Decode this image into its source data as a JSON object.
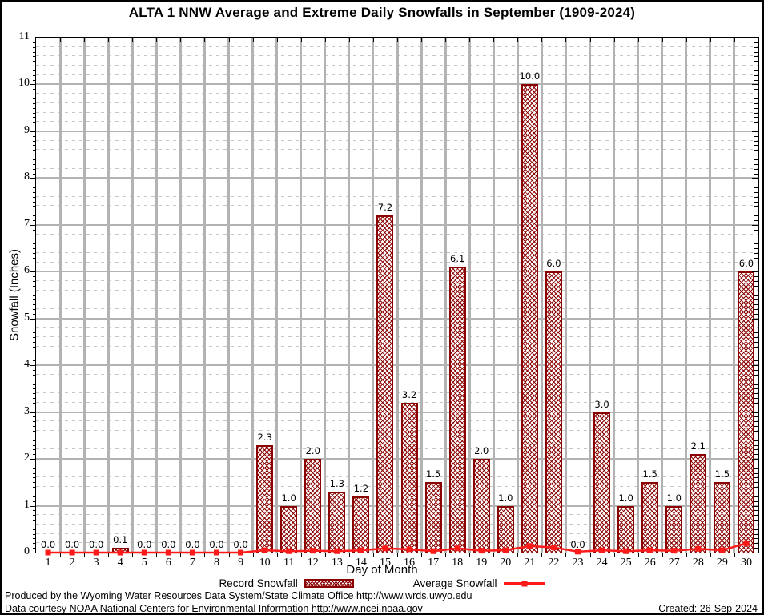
{
  "title": "ALTA 1 NNW Average and Extreme Daily Snowfalls in September (1909-2024)",
  "chart_data": {
    "type": "bar",
    "title": "ALTA 1 NNW Average and Extreme Daily Snowfalls in September (1909-2024)",
    "xlabel": "Day of Month",
    "ylabel": "Snowfall (Inches)",
    "ylim": [
      0,
      11
    ],
    "y_major_step": 1,
    "y_minor_step": 0.2,
    "grid": true,
    "legend_position": "bottom",
    "categories": [
      1,
      2,
      3,
      4,
      5,
      6,
      7,
      8,
      9,
      10,
      11,
      12,
      13,
      14,
      15,
      16,
      17,
      18,
      19,
      20,
      21,
      22,
      23,
      24,
      25,
      26,
      27,
      28,
      29,
      30
    ],
    "series": [
      {
        "name": "Record Snowfall",
        "type": "bar",
        "color": "#8b0000",
        "values": [
          0.0,
          0.0,
          0.0,
          0.1,
          0.0,
          0.0,
          0.0,
          0.0,
          0.0,
          2.3,
          1.0,
          2.0,
          1.3,
          1.2,
          7.2,
          3.2,
          1.5,
          6.1,
          2.0,
          1.0,
          10.0,
          6.0,
          0.0,
          3.0,
          1.0,
          1.5,
          1.0,
          2.1,
          1.5,
          6.0
        ]
      },
      {
        "name": "Average Snowfall",
        "type": "line",
        "color": "#ff1a1a",
        "values": [
          0.0,
          0.0,
          0.0,
          0.0,
          0.0,
          0.0,
          0.0,
          0.0,
          0.0,
          0.05,
          0.03,
          0.04,
          0.03,
          0.05,
          0.09,
          0.07,
          0.03,
          0.09,
          0.04,
          0.05,
          0.14,
          0.11,
          0.02,
          0.05,
          0.03,
          0.05,
          0.04,
          0.08,
          0.05,
          0.2
        ]
      }
    ]
  },
  "colors": {
    "bar_red": "#8b0000",
    "line_red": "#ff1a1a",
    "grid_major": "#b3b3b3",
    "grid_minor": "#c6c6c6"
  },
  "footer": {
    "line1": "Produced by the Wyoming Water Resources Data System/State Climate Office http://www.wrds.uwyo.edu",
    "line2": "Data courtesy NOAA National Centers for Environmental Information http://www.ncei.noaa.gov",
    "created": "Created: 26-Sep-2024"
  }
}
